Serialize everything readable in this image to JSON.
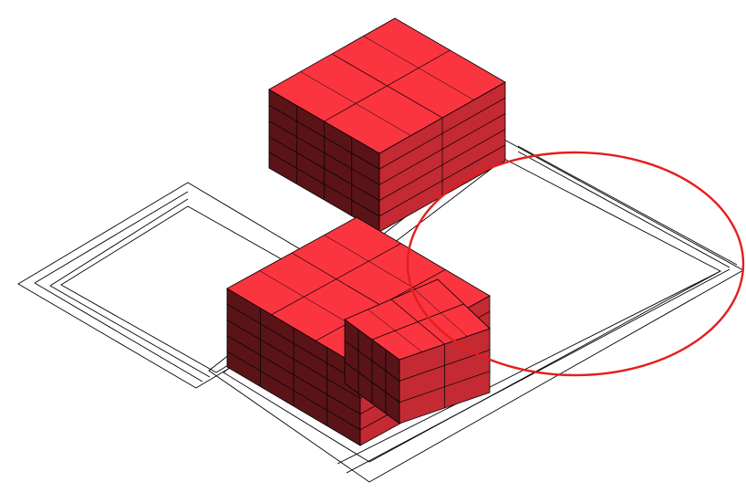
{
  "scene": {
    "background": "#ffffff",
    "line_color": "#000000",
    "block_colors": {
      "top": "#fb3540",
      "right": "#c42a33",
      "left": "#5a1418"
    },
    "selection_color": "#e31e1e",
    "view": "isometric",
    "boards": [
      {
        "name": "board-outer-left-frame"
      },
      {
        "name": "board-inner-left-frame"
      },
      {
        "name": "board-outer-right-frame"
      },
      {
        "name": "board-inner-right-frame"
      }
    ],
    "blocks": [
      {
        "name": "stack-back",
        "grid_cols": 2,
        "grid_rows": 2,
        "layers": 5
      },
      {
        "name": "stack-front-left",
        "grid_cols": 3,
        "grid_rows": 2,
        "layers": 5
      },
      {
        "name": "stack-front-step",
        "grid_cols": 2,
        "grid_rows": 2,
        "layers": 3
      }
    ]
  }
}
